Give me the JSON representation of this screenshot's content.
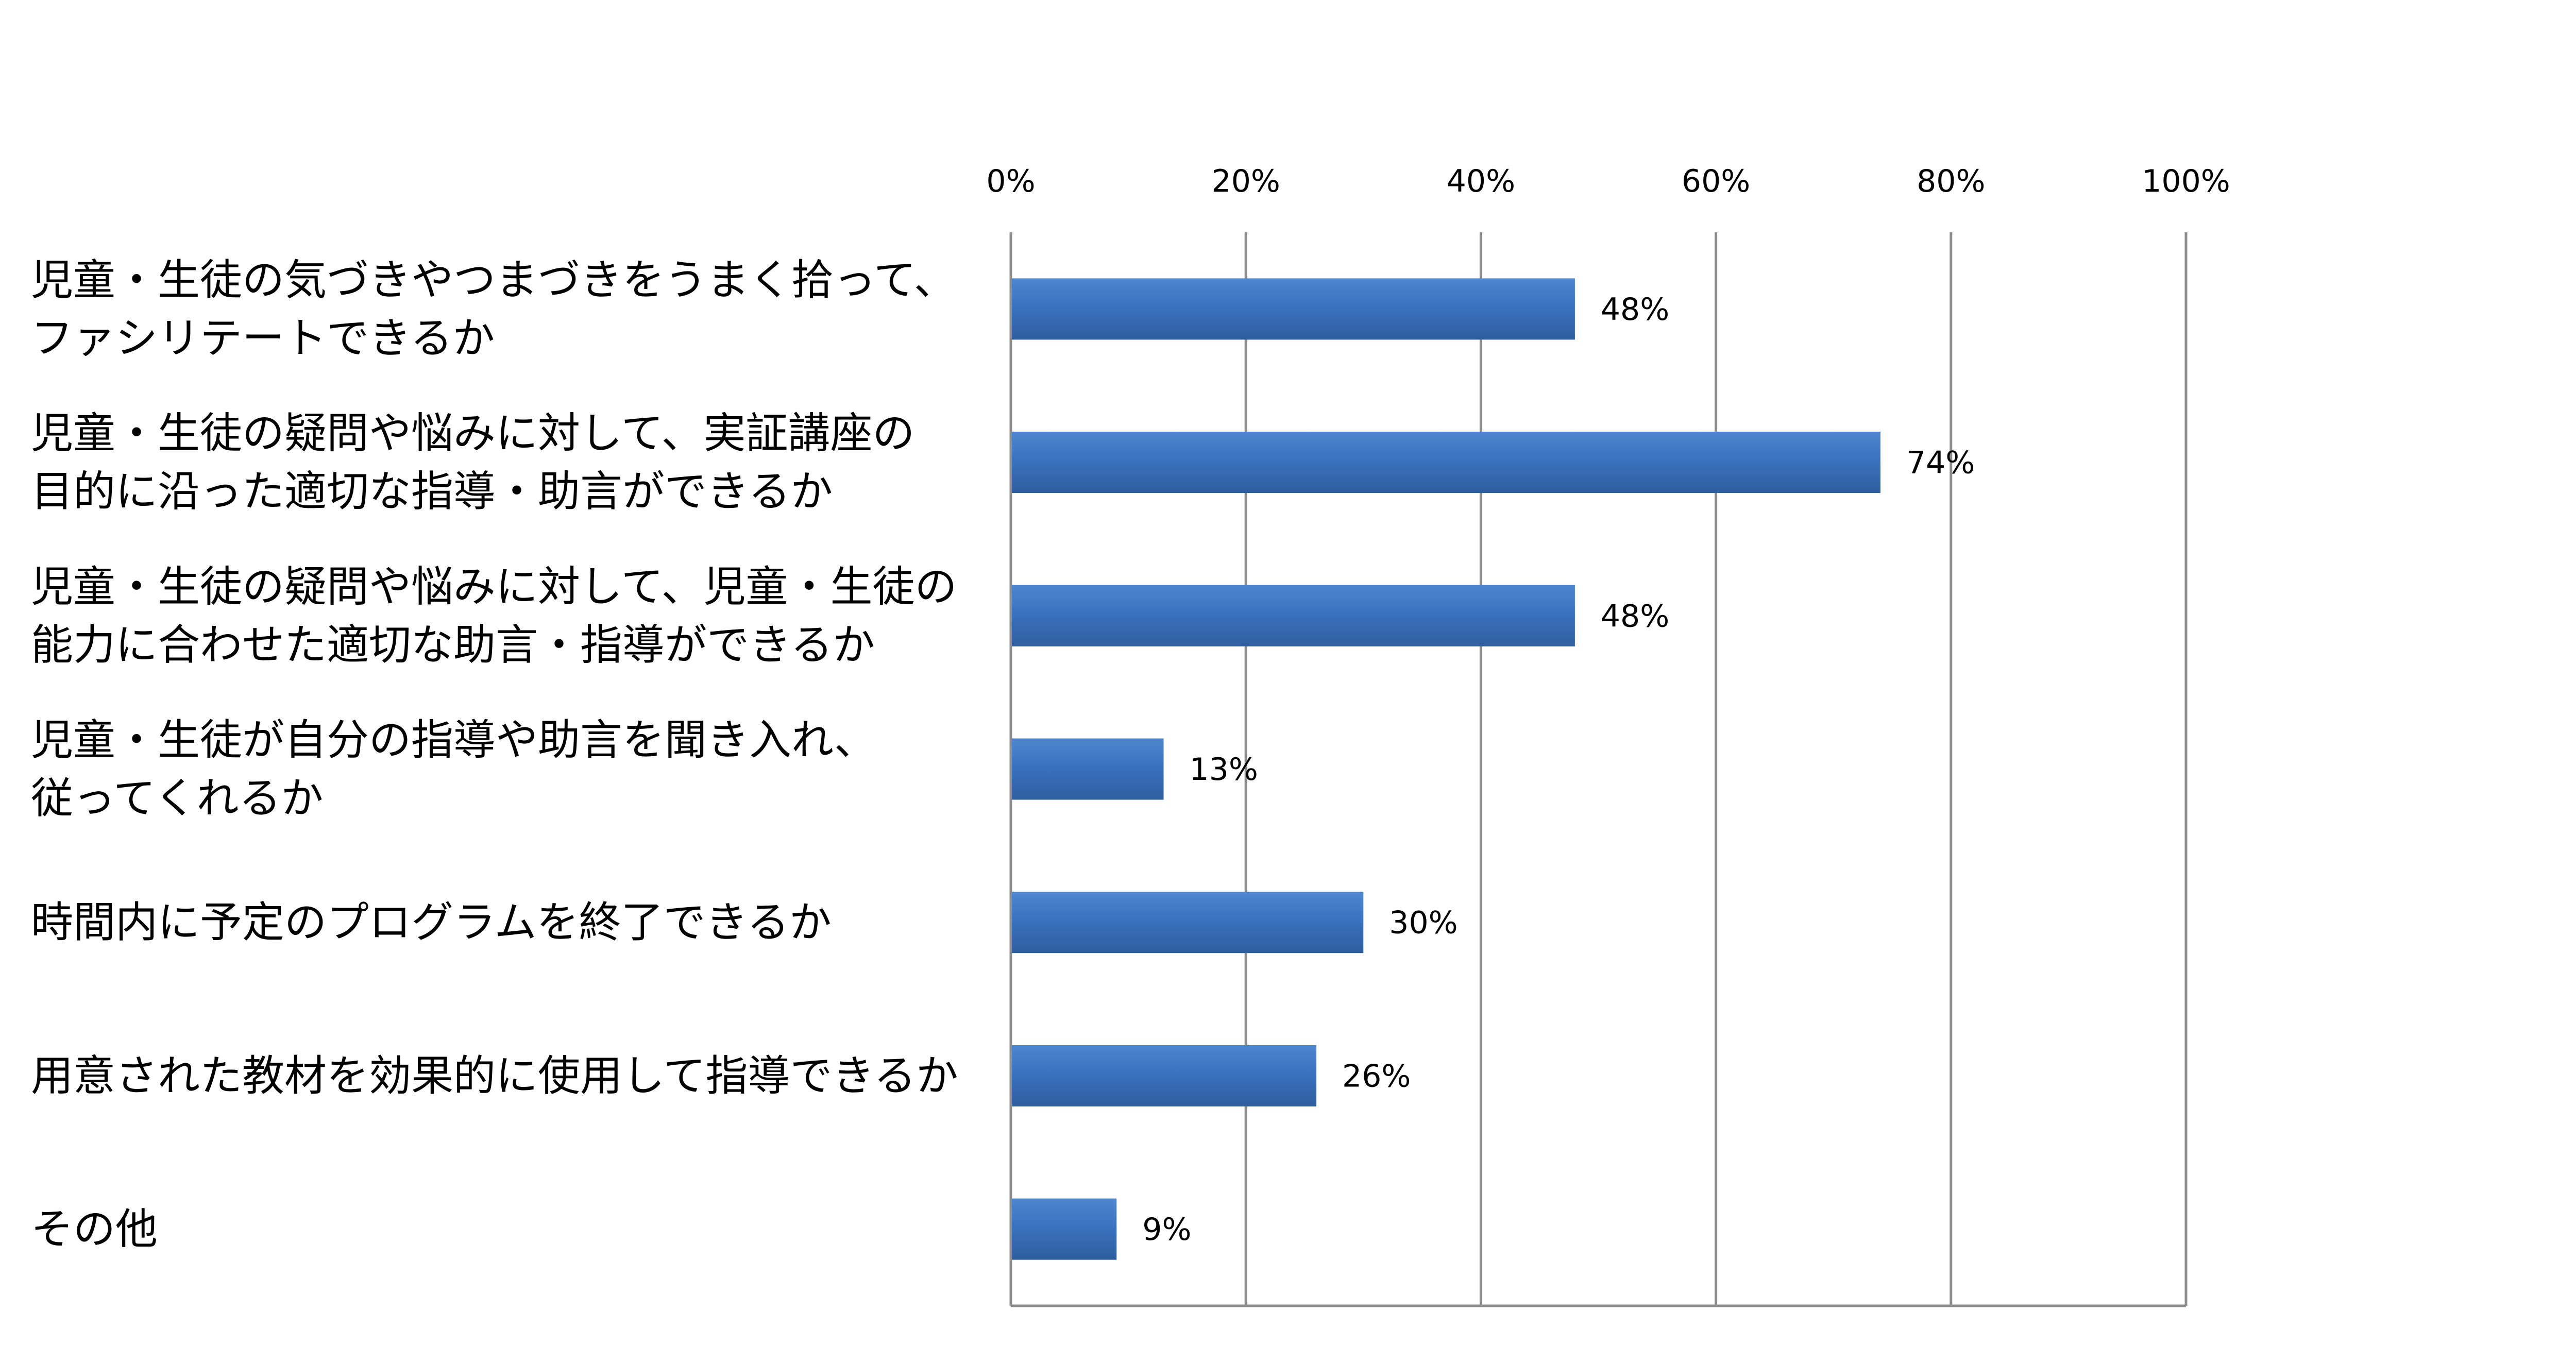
{
  "chart_data": {
    "type": "bar",
    "orientation": "horizontal",
    "categories": [
      [
        "児童・生徒の気づきやつまづきをうまく拾って、",
        "ファシリテートできるか"
      ],
      [
        "児童・生徒の疑問や悩みに対して、実証講座の",
        "目的に沿った適切な指導・助言ができるか"
      ],
      [
        "児童・生徒の疑問や悩みに対して、児童・生徒の",
        "能力に合わせた適切な助言・指導ができるか"
      ],
      [
        "児童・生徒が自分の指導や助言を聞き入れ、",
        "従ってくれるか"
      ],
      [
        "時間内に予定のプログラムを終了できるか"
      ],
      [
        "用意された教材を効果的に使用して指導できるか"
      ],
      [
        "その他"
      ]
    ],
    "values": [
      48,
      74,
      48,
      13,
      30,
      26,
      9
    ],
    "data_labels": [
      "48%",
      "74%",
      "48%",
      "13%",
      "30%",
      "26%",
      "9%"
    ],
    "xlim": [
      0,
      100
    ],
    "x_ticks": [
      0,
      20,
      40,
      60,
      80,
      100
    ],
    "x_tick_labels": [
      "0%",
      "20%",
      "40%",
      "60%",
      "80%",
      "100%"
    ],
    "x_axis_position": "top",
    "grid": true,
    "legend": "none",
    "bar_color": "#3A72C0",
    "bar_color_light": "#4F86CF",
    "bar_color_dark": "#2E5E9E",
    "grid_color": "#8C8C8C",
    "text_color": "#000000"
  }
}
